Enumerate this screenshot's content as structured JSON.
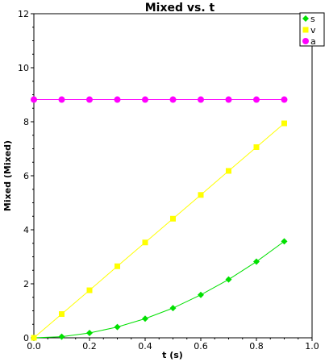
{
  "chart_data": {
    "type": "line",
    "title": "Mixed vs. t",
    "xlabel": "t (s)",
    "ylabel": "Mixed (Mixed)",
    "xlim": [
      0.0,
      1.0
    ],
    "ylim": [
      0,
      12
    ],
    "x_ticks": [
      "0.0",
      "0.2",
      "0.4",
      "0.6",
      "0.8",
      "1.0"
    ],
    "y_ticks": [
      "0",
      "2",
      "4",
      "6",
      "8",
      "10",
      "12"
    ],
    "grid": false,
    "legend_position": "top-right",
    "series": [
      {
        "name": "s",
        "color": "#00e000",
        "marker": "diamond",
        "x": [
          0.0,
          0.1,
          0.2,
          0.3,
          0.4,
          0.5,
          0.6,
          0.7,
          0.8,
          0.9
        ],
        "y": [
          0.0,
          0.04,
          0.18,
          0.4,
          0.71,
          1.1,
          1.59,
          2.16,
          2.82,
          3.57
        ]
      },
      {
        "name": "v",
        "color": "#ffff00",
        "marker": "square",
        "x": [
          0.0,
          0.1,
          0.2,
          0.3,
          0.4,
          0.5,
          0.6,
          0.7,
          0.8,
          0.9
        ],
        "y": [
          0.0,
          0.88,
          1.76,
          2.65,
          3.53,
          4.41,
          5.29,
          6.18,
          7.06,
          7.94
        ]
      },
      {
        "name": "a",
        "color": "#ff00ff",
        "marker": "circle",
        "x": [
          0.0,
          0.1,
          0.2,
          0.3,
          0.4,
          0.5,
          0.6,
          0.7,
          0.8,
          0.9
        ],
        "y": [
          8.82,
          8.82,
          8.82,
          8.82,
          8.82,
          8.82,
          8.82,
          8.82,
          8.82,
          8.82
        ]
      }
    ]
  }
}
